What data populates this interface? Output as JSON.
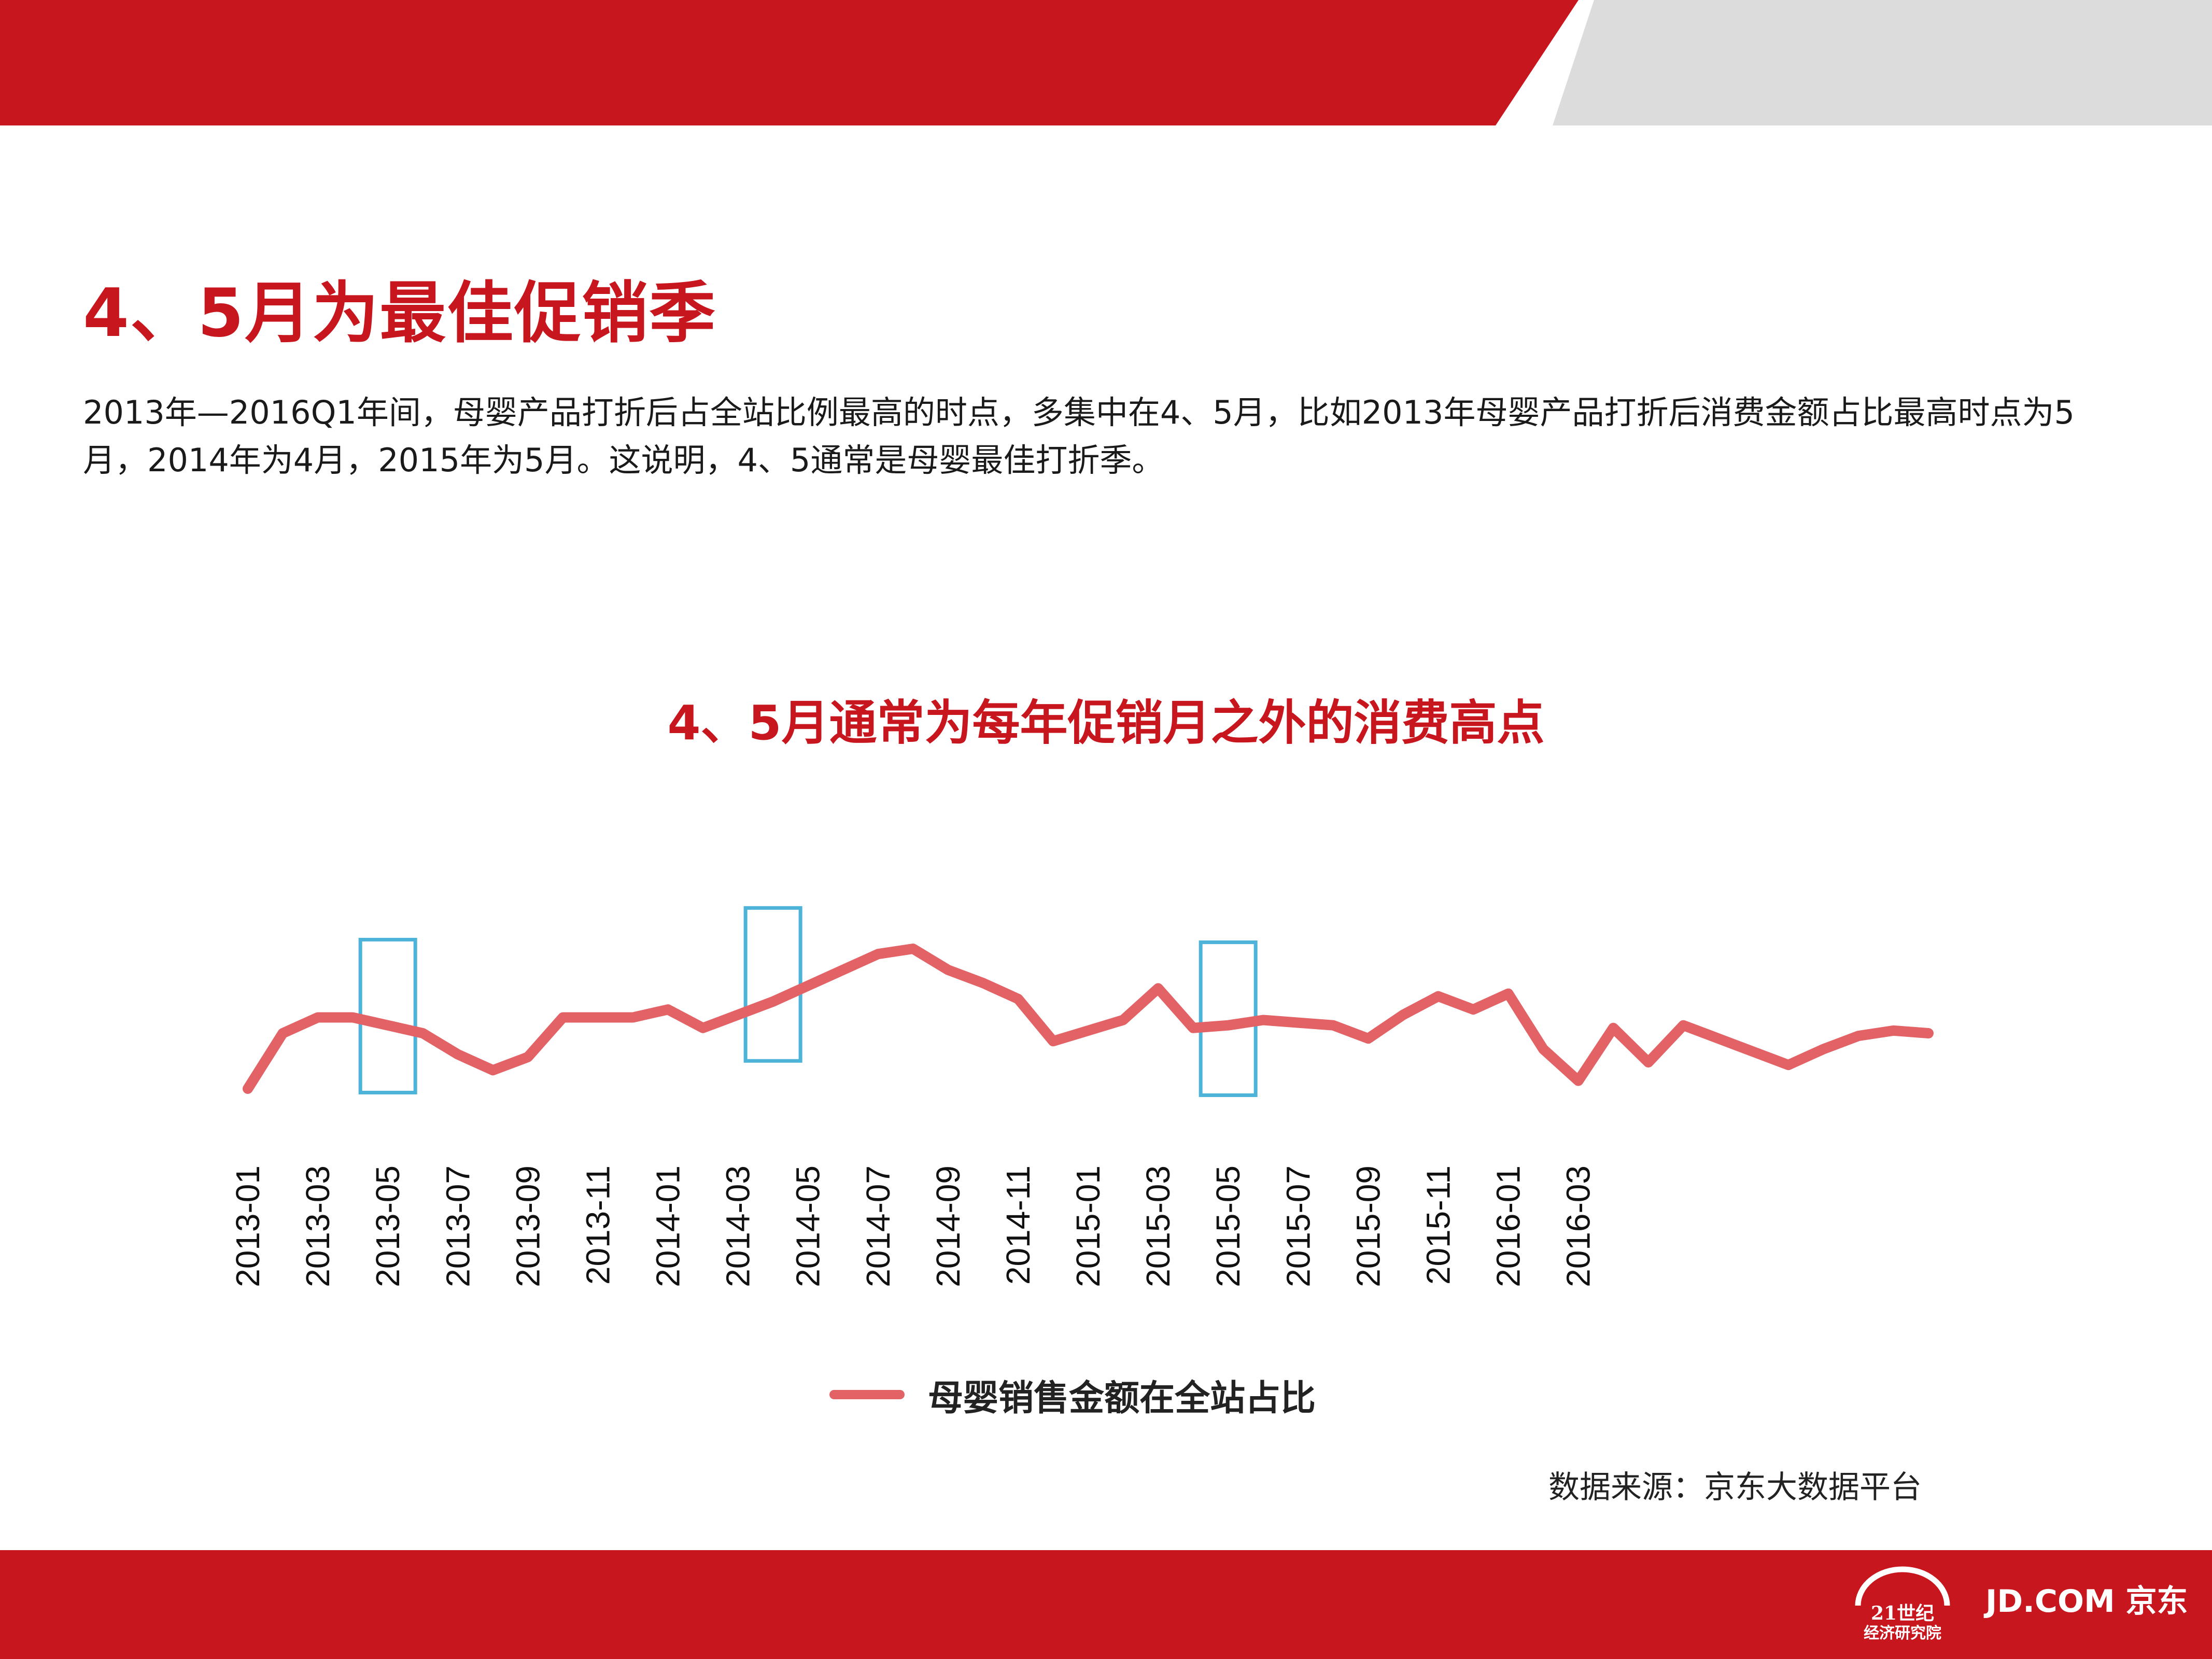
{
  "page": {
    "title": "4、5月为最佳促销季",
    "intro": "2013年—2016Q1年间，母婴产品打折后占全站比例最高的时点，多集中在4、5月，比如2013年母婴产品打折后消费金额占比最高时点为5月，2014年为4月，2015年为5月。这说明，4、5通常是母婴最佳打折季。",
    "source": "数据来源：京东大数据平台"
  },
  "colors": {
    "brand_red": "#c8161e",
    "band_gray": "#dcdcdc",
    "line": "#e26266",
    "highlight_box": "#4db3d8"
  },
  "branding": {
    "logo_21_line1": "21世纪",
    "logo_21_line2": "经济研究院",
    "logo_jd": "JD.COM 京东"
  },
  "chart_data": {
    "type": "line",
    "title": "4、5月通常为每年促销月之外的消费高点",
    "series": [
      {
        "name": "母婴销售金额在全站占比",
        "values": [
          10,
          31,
          37,
          37,
          34,
          31,
          23,
          17,
          22,
          37,
          37,
          37,
          40,
          33,
          38,
          43,
          49,
          55,
          61,
          63,
          55,
          50,
          44,
          28,
          32,
          36,
          48,
          33,
          34,
          36,
          35,
          34,
          29,
          38,
          45,
          40,
          46,
          25,
          13,
          33,
          20,
          34,
          29,
          24,
          19,
          25,
          30,
          32,
          31
        ]
      }
    ],
    "x_labels": [
      "2013-01",
      "2013-03",
      "2013-05",
      "2013-07",
      "2013-09",
      "2013-11",
      "2014-01",
      "2014-03",
      "2014-05",
      "2014-07",
      "2014-09",
      "2014-11",
      "2015-01",
      "2015-03",
      "2015-05",
      "2015-07",
      "2015-09",
      "2015-11",
      "2016-01",
      "2016-03"
    ],
    "highlights": [
      "2013-05",
      "2014-04",
      "2015-05"
    ],
    "legend_position": "bottom",
    "grid": false,
    "y_axis_shown": false
  }
}
